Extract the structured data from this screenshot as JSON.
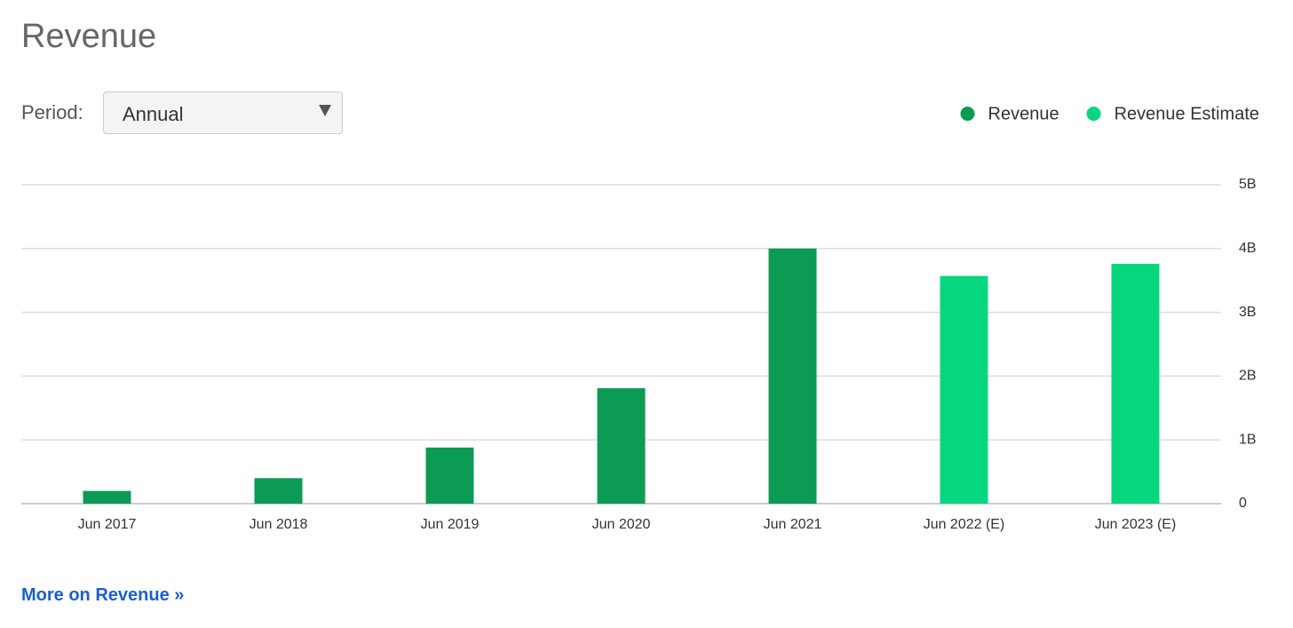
{
  "controls": {
    "period_label": "Period:",
    "period_value": "Annual",
    "link": "More on Revenue »"
  },
  "chart_data": {
    "type": "bar",
    "title": "Revenue",
    "categories": [
      "Jun 2017",
      "Jun 2018",
      "Jun 2019",
      "Jun 2020",
      "Jun 2021",
      "Jun 2022 (E)",
      "Jun 2023 (E)"
    ],
    "series": [
      {
        "name": "Revenue",
        "color": "#0b9b55",
        "values": [
          0.2,
          0.4,
          0.88,
          1.81,
          4.0,
          null,
          null
        ]
      },
      {
        "name": "Revenue Estimate",
        "color": "#06d77f",
        "values": [
          null,
          null,
          null,
          null,
          null,
          3.57,
          3.76
        ]
      }
    ],
    "ylim": [
      0,
      5
    ],
    "yticks": [
      0,
      {
        "value": 1,
        "label": "1B"
      },
      {
        "value": 2,
        "label": "2B"
      },
      {
        "value": 3,
        "label": "3B"
      },
      {
        "value": 4,
        "label": "4B"
      },
      {
        "value": 5,
        "label": "5B"
      }
    ],
    "grid": true,
    "legend": "top-right"
  }
}
